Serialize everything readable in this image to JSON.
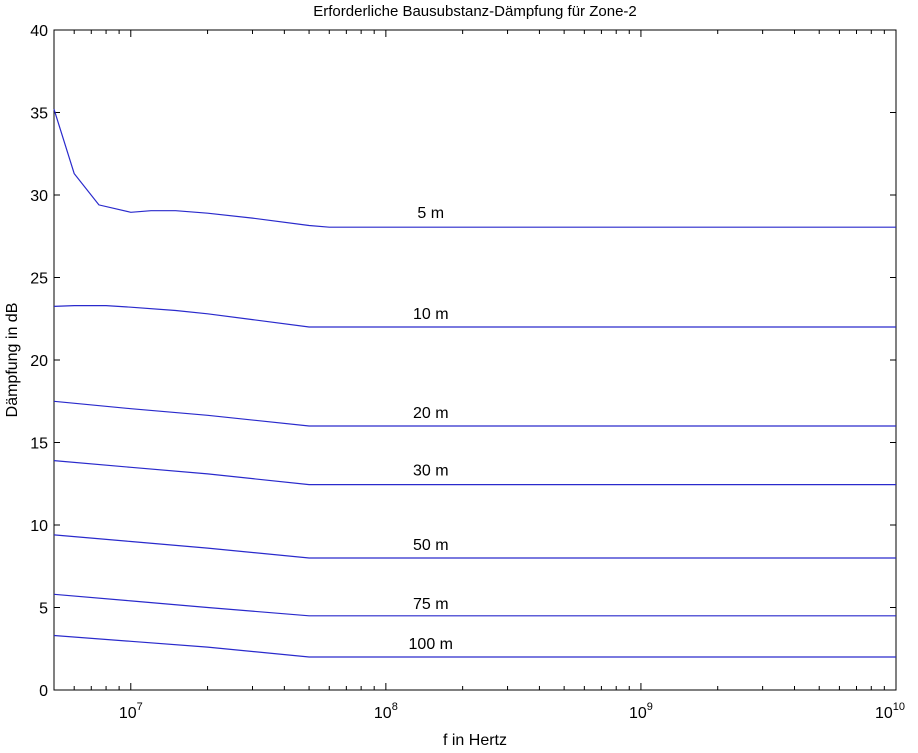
{
  "chart_data": {
    "type": "line",
    "title": "Erforderliche Bausubstanz-Dämpfung für Zone-2",
    "xlabel": "f in Hertz",
    "ylabel": "Dämpfung in dB",
    "xscale": "log",
    "xlim": [
      5000000,
      10000000000
    ],
    "ylim": [
      0,
      40
    ],
    "yticks": [
      0,
      5,
      10,
      15,
      20,
      25,
      30,
      35,
      40
    ],
    "xticks": [
      {
        "value": 10000000,
        "base": "10",
        "exp": "7"
      },
      {
        "value": 100000000,
        "base": "10",
        "exp": "8"
      },
      {
        "value": 1000000000,
        "base": "10",
        "exp": "9"
      },
      {
        "value": 10000000000,
        "base": "10",
        "exp": "10"
      }
    ],
    "grid": false,
    "line_color": "#2a2acc",
    "series": [
      {
        "name": "5 m",
        "label_x": 150000000,
        "label_y": 28.6,
        "points": [
          [
            5000000,
            35.2
          ],
          [
            6000000,
            31.3
          ],
          [
            7500000,
            29.4
          ],
          [
            10000000,
            28.95
          ],
          [
            12000000,
            29.05
          ],
          [
            15000000,
            29.05
          ],
          [
            20000000,
            28.9
          ],
          [
            30000000,
            28.6
          ],
          [
            50000000,
            28.15
          ],
          [
            60000000,
            28.05
          ],
          [
            10000000000,
            28.05
          ]
        ]
      },
      {
        "name": "10 m",
        "label_x": 150000000,
        "label_y": 22.5,
        "points": [
          [
            5000000,
            23.25
          ],
          [
            6000000,
            23.3
          ],
          [
            8000000,
            23.3
          ],
          [
            10000000,
            23.2
          ],
          [
            15000000,
            23.0
          ],
          [
            20000000,
            22.8
          ],
          [
            30000000,
            22.45
          ],
          [
            50000000,
            22.0
          ],
          [
            10000000000,
            22.0
          ]
        ]
      },
      {
        "name": "20 m",
        "label_x": 150000000,
        "label_y": 16.5,
        "points": [
          [
            5000000,
            17.5
          ],
          [
            10000000,
            17.05
          ],
          [
            20000000,
            16.65
          ],
          [
            50000000,
            16.0
          ],
          [
            10000000000,
            16.0
          ]
        ]
      },
      {
        "name": "30 m",
        "label_x": 150000000,
        "label_y": 13.0,
        "points": [
          [
            5000000,
            13.9
          ],
          [
            10000000,
            13.5
          ],
          [
            20000000,
            13.1
          ],
          [
            50000000,
            12.45
          ],
          [
            10000000000,
            12.45
          ]
        ]
      },
      {
        "name": "50 m",
        "label_x": 150000000,
        "label_y": 8.5,
        "points": [
          [
            5000000,
            9.4
          ],
          [
            10000000,
            9.0
          ],
          [
            20000000,
            8.6
          ],
          [
            50000000,
            8.0
          ],
          [
            10000000000,
            8.0
          ]
        ]
      },
      {
        "name": "75 m",
        "label_x": 150000000,
        "label_y": 4.9,
        "points": [
          [
            5000000,
            5.8
          ],
          [
            10000000,
            5.4
          ],
          [
            20000000,
            5.0
          ],
          [
            50000000,
            4.5
          ],
          [
            10000000000,
            4.5
          ]
        ]
      },
      {
        "name": "100 m",
        "label_x": 150000000,
        "label_y": 2.5,
        "points": [
          [
            5000000,
            3.3
          ],
          [
            10000000,
            2.95
          ],
          [
            20000000,
            2.6
          ],
          [
            50000000,
            2.0
          ],
          [
            10000000000,
            2.0
          ]
        ]
      }
    ]
  }
}
